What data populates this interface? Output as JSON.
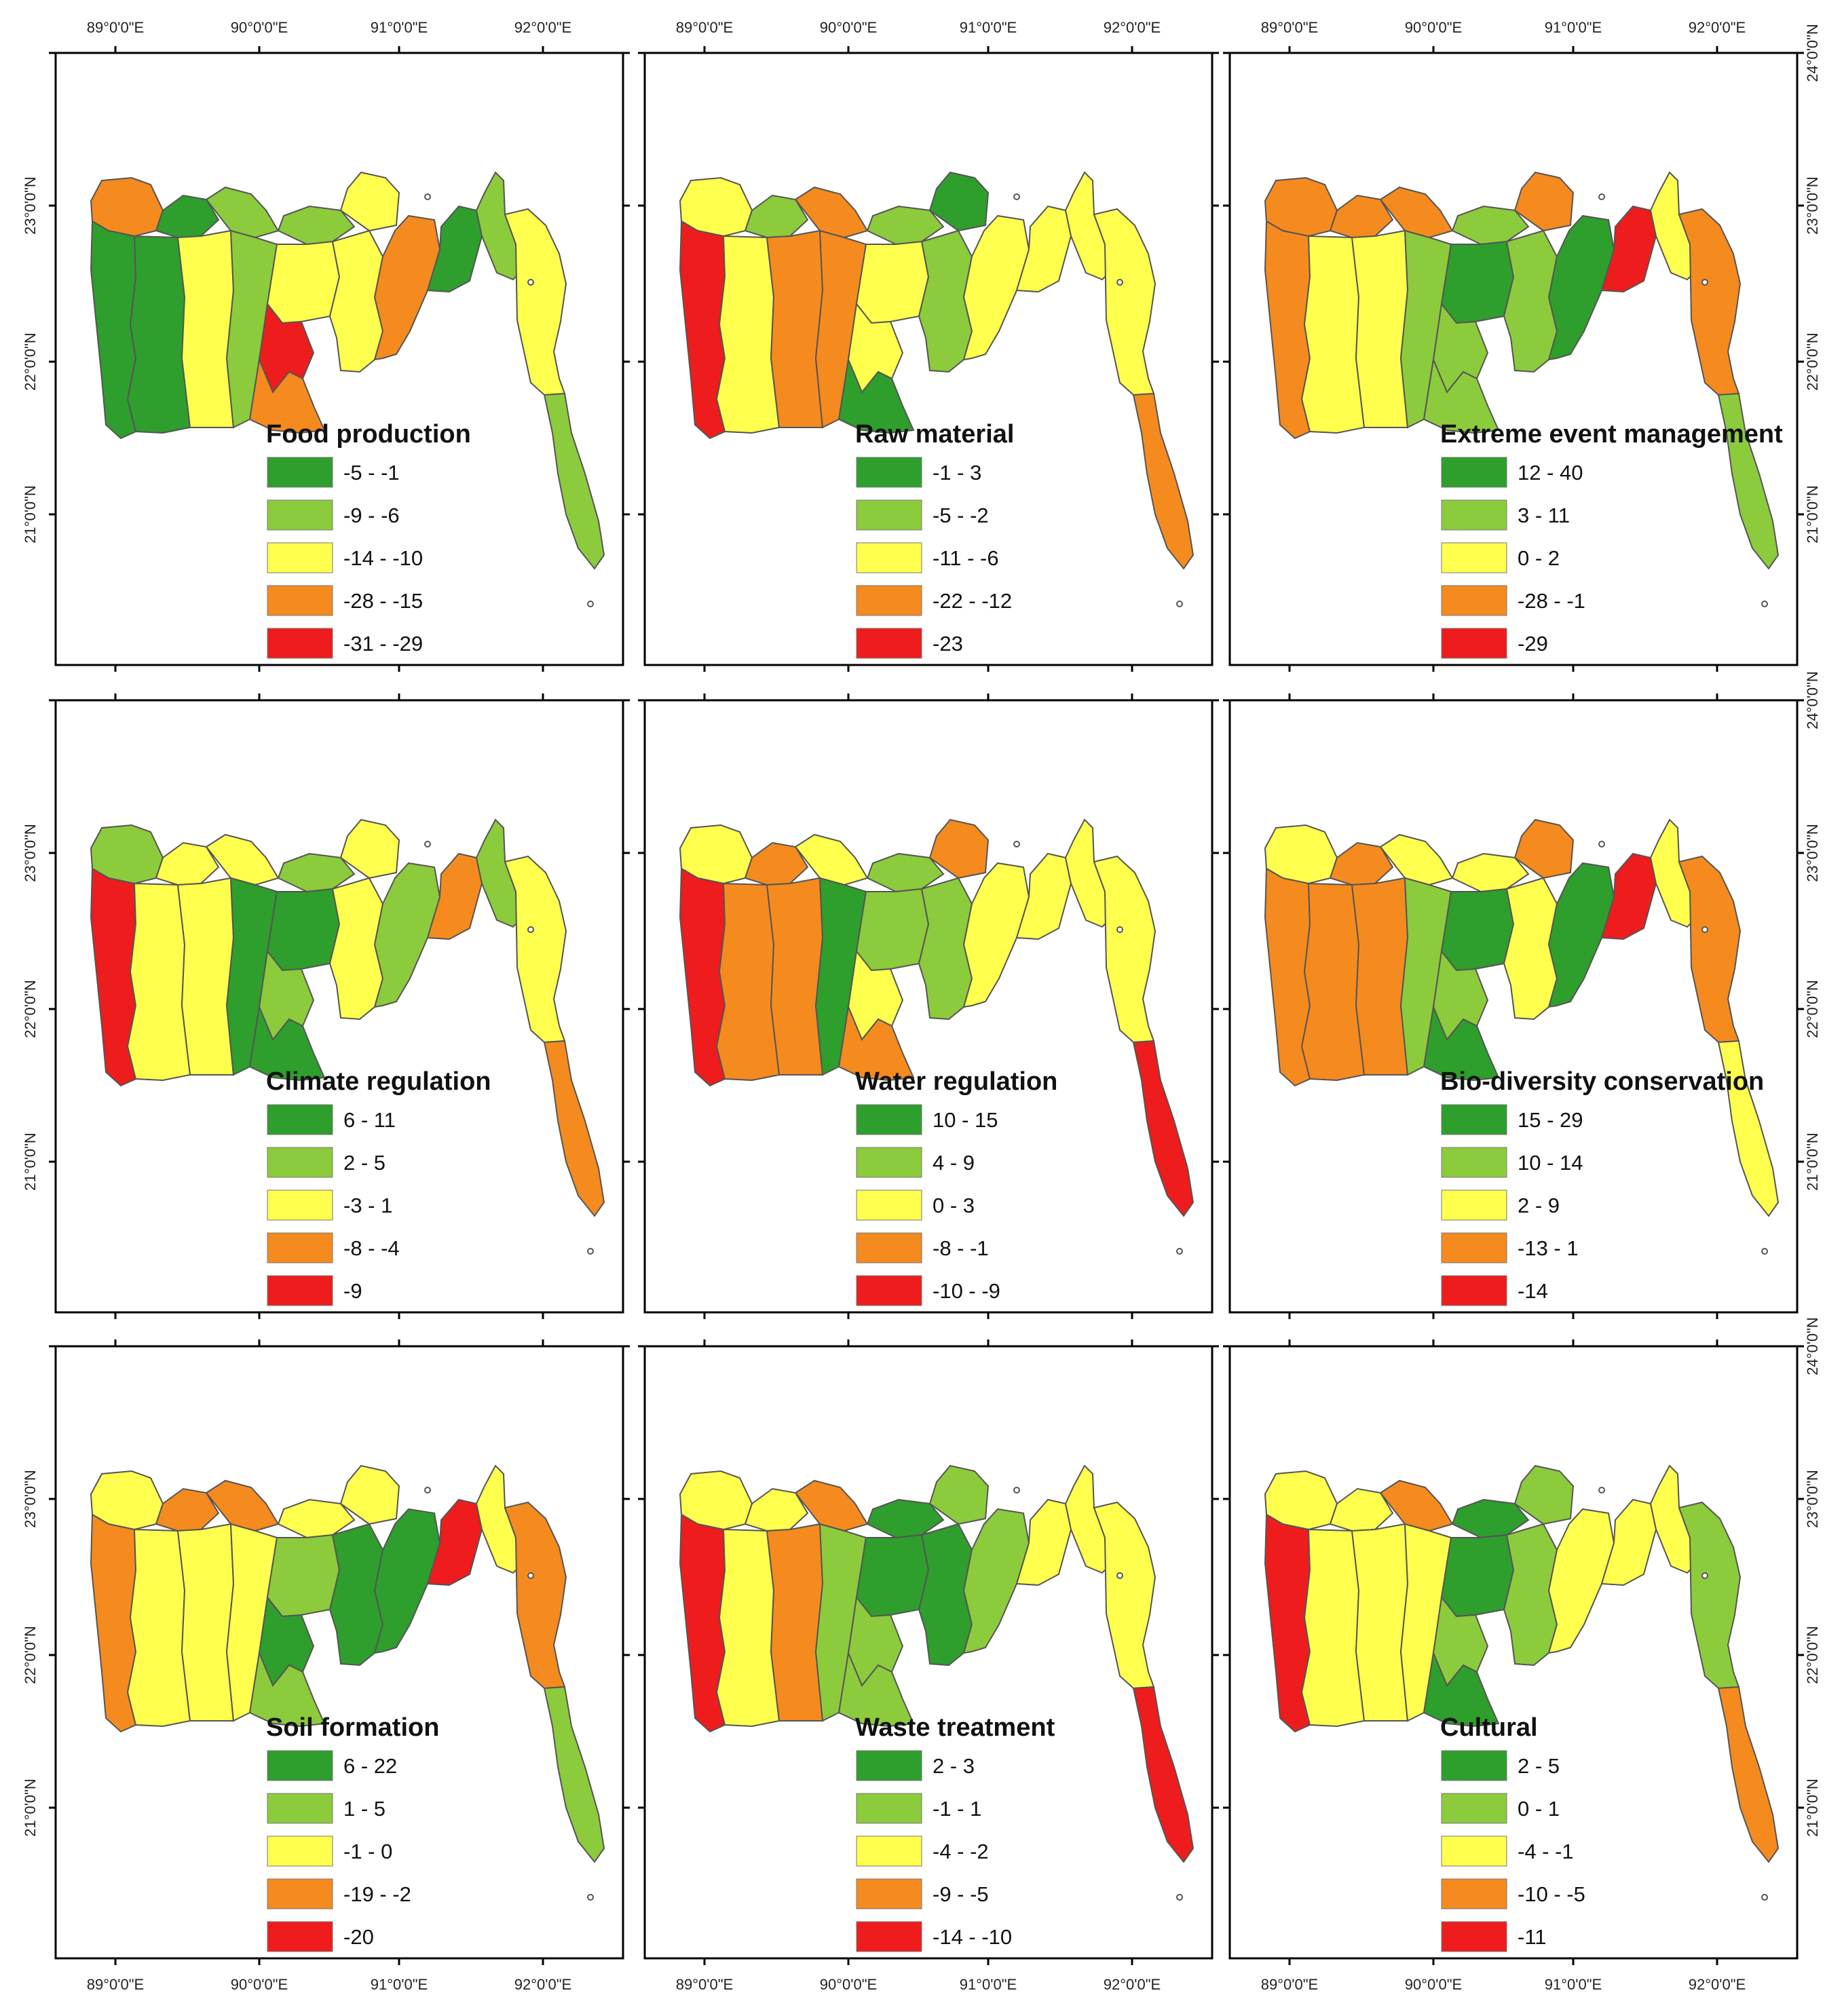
{
  "colors": {
    "dark_green": "#2e9e2c",
    "light_green": "#8ccb3c",
    "yellow": "#ffff4d",
    "orange": "#f58a1f",
    "red": "#ee1c1c",
    "frame": "#000000"
  },
  "axes": {
    "x_ticks": [
      "89°0'0\"E",
      "90°0'0\"E",
      "91°0'0\"E",
      "92°0'0\"E"
    ],
    "y_ticks": [
      "24°0'0\"N",
      "23°0'0\"N",
      "22°0'0\"N",
      "21°0'0\"N"
    ]
  },
  "panels": [
    {
      "title": "Food production",
      "legend": [
        "-5 - -1",
        "-9 - -6",
        "-14 - -10",
        "-28 - -15",
        "-31 - -29"
      ],
      "fills": [
        "o",
        "d",
        "l",
        "l",
        "y",
        "d",
        "d",
        "y",
        "l",
        "y",
        "r",
        "o",
        "y",
        "o",
        "d",
        "l",
        "y",
        "l"
      ]
    },
    {
      "title": "Raw material",
      "legend": [
        "-1 - 3",
        "-5 - -2",
        "-11 - -6",
        "-22 - -12",
        "-23"
      ],
      "fills": [
        "y",
        "l",
        "o",
        "l",
        "d",
        "r",
        "y",
        "o",
        "o",
        "y",
        "y",
        "d",
        "l",
        "y",
        "y",
        "y",
        "y",
        "o"
      ]
    },
    {
      "title": "Extreme event management",
      "legend": [
        "12 - 40",
        "3 - 11",
        "0 - 2",
        "-28 - -1",
        "-29"
      ],
      "fills": [
        "o",
        "o",
        "o",
        "l",
        "o",
        "o",
        "y",
        "y",
        "l",
        "d",
        "l",
        "l",
        "l",
        "d",
        "r",
        "y",
        "o",
        "l"
      ]
    },
    {
      "title": "Climate regulation",
      "legend": [
        "6 - 11",
        "2 - 5",
        "-3 - 1",
        "-8 - -4",
        "-9"
      ],
      "fills": [
        "l",
        "y",
        "y",
        "l",
        "y",
        "r",
        "y",
        "y",
        "d",
        "d",
        "l",
        "d",
        "y",
        "l",
        "o",
        "l",
        "y",
        "o"
      ]
    },
    {
      "title": "Water regulation",
      "legend": [
        "10 - 15",
        "4 - 9",
        "0 - 3",
        "-8 - -1",
        "-10 - -9"
      ],
      "fills": [
        "y",
        "o",
        "y",
        "l",
        "o",
        "r",
        "o",
        "o",
        "d",
        "l",
        "y",
        "o",
        "l",
        "y",
        "y",
        "y",
        "y",
        "r"
      ]
    },
    {
      "title": "Bio-diversity conservation",
      "legend": [
        "15 - 29",
        "10 - 14",
        "2 - 9",
        "-13 - 1",
        "-14"
      ],
      "fills": [
        "y",
        "o",
        "y",
        "y",
        "o",
        "o",
        "o",
        "o",
        "l",
        "d",
        "l",
        "d",
        "y",
        "d",
        "r",
        "y",
        "o",
        "y"
      ]
    },
    {
      "title": "Soil formation",
      "legend": [
        "6 - 22",
        "1 - 5",
        "-1 - 0",
        "-19 - -2",
        "-20"
      ],
      "fills": [
        "y",
        "o",
        "o",
        "y",
        "y",
        "o",
        "y",
        "y",
        "y",
        "l",
        "d",
        "l",
        "d",
        "d",
        "r",
        "y",
        "o",
        "l"
      ]
    },
    {
      "title": "Waste treatment",
      "legend": [
        "2 - 3",
        "-1 - 1",
        "-4 - -2",
        "-9 - -5",
        "-14 - -10"
      ],
      "fills": [
        "y",
        "y",
        "o",
        "d",
        "l",
        "r",
        "y",
        "o",
        "l",
        "d",
        "l",
        "l",
        "d",
        "l",
        "y",
        "y",
        "y",
        "r"
      ]
    },
    {
      "title": "Cultural",
      "legend": [
        "2 - 5",
        "0 - 1",
        "-4 - -1",
        "-10 - -5",
        "-11"
      ],
      "fills": [
        "y",
        "y",
        "o",
        "d",
        "l",
        "r",
        "y",
        "y",
        "y",
        "d",
        "l",
        "d",
        "l",
        "y",
        "y",
        "y",
        "l",
        "o"
      ]
    }
  ]
}
